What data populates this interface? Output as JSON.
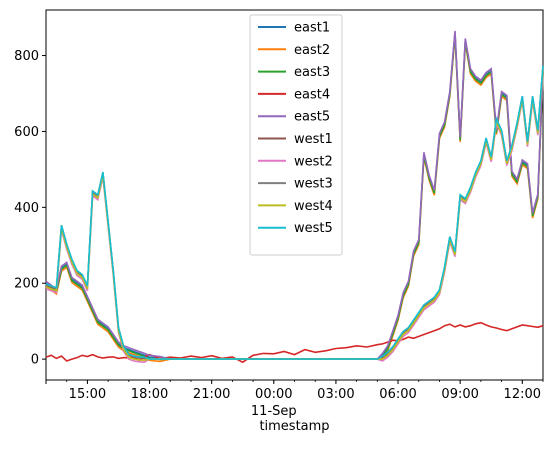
{
  "chart_data": {
    "type": "line",
    "xlabel": "timestamp",
    "ylabel": "",
    "title": "",
    "ylim": [
      -55,
      920
    ],
    "xlim": [
      13.0,
      37.0
    ],
    "grid": false,
    "legend_position": "top-center",
    "y_ticks": [
      {
        "value": 0,
        "label": "0"
      },
      {
        "value": 200,
        "label": "200"
      },
      {
        "value": 400,
        "label": "400"
      },
      {
        "value": 600,
        "label": "600"
      },
      {
        "value": 800,
        "label": "800"
      }
    ],
    "x_ticks": [
      {
        "value": 15,
        "label": "15:00"
      },
      {
        "value": 18,
        "label": "18:00"
      },
      {
        "value": 21,
        "label": "21:00"
      },
      {
        "value": 24,
        "label": "00:00"
      },
      {
        "value": 27,
        "label": "03:00"
      },
      {
        "value": 30,
        "label": "06:00"
      },
      {
        "value": 33,
        "label": "09:00"
      },
      {
        "value": 36,
        "label": "12:00"
      }
    ],
    "x_sublabel": {
      "value": 24,
      "label": "11-Sep"
    },
    "x": [
      13.0,
      13.25,
      13.5,
      13.75,
      14.0,
      14.25,
      14.5,
      14.75,
      15.0,
      15.25,
      15.5,
      15.75,
      16.0,
      16.25,
      16.5,
      16.75,
      17.0,
      17.25,
      17.5,
      17.75,
      18.0,
      18.5,
      19.0,
      19.5,
      20.0,
      20.5,
      21.0,
      21.5,
      22.0,
      22.5,
      23.0,
      23.5,
      24.0,
      24.5,
      25.0,
      25.5,
      26.0,
      26.5,
      27.0,
      27.5,
      28.0,
      28.5,
      29.0,
      29.25,
      29.5,
      29.75,
      30.0,
      30.25,
      30.5,
      30.75,
      31.0,
      31.25,
      31.5,
      31.75,
      32.0,
      32.25,
      32.5,
      32.75,
      33.0,
      33.25,
      33.5,
      33.75,
      34.0,
      34.25,
      34.5,
      34.75,
      35.0,
      35.25,
      35.5,
      35.75,
      36.0,
      36.25,
      36.5,
      36.75,
      37.0
    ],
    "series": [
      {
        "name": "east1",
        "color": "#1f77b4",
        "offset": 0
      },
      {
        "name": "east2",
        "color": "#ff7f0e",
        "offset": -8
      },
      {
        "name": "east3",
        "color": "#2ca02c",
        "offset": -3
      },
      {
        "name": "east4",
        "color": "#d62728",
        "values": [
          5,
          10,
          2,
          8,
          -5,
          0,
          4,
          10,
          7,
          12,
          6,
          3,
          5,
          6,
          2,
          4,
          3,
          5,
          -3,
          6,
          12,
          2,
          5,
          3,
          8,
          4,
          9,
          2,
          6,
          -8,
          10,
          15,
          14,
          20,
          12,
          25,
          18,
          22,
          28,
          30,
          35,
          32,
          38,
          40,
          45,
          50,
          48,
          52,
          58,
          55,
          60,
          65,
          70,
          75,
          80,
          88,
          92,
          85,
          90,
          85,
          88,
          93,
          96,
          90,
          85,
          82,
          78,
          75,
          80,
          85,
          90,
          88,
          86,
          84,
          88
        ]
      },
      {
        "name": "east5",
        "color": "#9467bd",
        "offset": 5
      },
      {
        "name": "west1",
        "color": "#8c564b",
        "offset": 0
      },
      {
        "name": "west2",
        "color": "#e377c2",
        "offset": -10
      },
      {
        "name": "west3",
        "color": "#7f7f7f",
        "offset": 2
      },
      {
        "name": "west4",
        "color": "#bcbd22",
        "offset": -5
      },
      {
        "name": "west5",
        "color": "#17becf",
        "offset": 3
      }
    ],
    "east_base": [
      200,
      190,
      180,
      240,
      250,
      210,
      200,
      190,
      160,
      130,
      100,
      90,
      80,
      60,
      40,
      30,
      25,
      20,
      15,
      10,
      5,
      2,
      0,
      0,
      0,
      0,
      0,
      0,
      0,
      0,
      0,
      0,
      0,
      0,
      0,
      0,
      0,
      0,
      0,
      0,
      0,
      0,
      0,
      10,
      30,
      70,
      110,
      170,
      200,
      280,
      310,
      540,
      480,
      440,
      590,
      620,
      700,
      860,
      580,
      840,
      760,
      740,
      730,
      750,
      760,
      600,
      700,
      690,
      490,
      470,
      520,
      510,
      380,
      430,
      760
    ],
    "west_base": [
      195,
      190,
      185,
      350,
      300,
      260,
      230,
      220,
      190,
      440,
      430,
      490,
      360,
      230,
      80,
      30,
      10,
      5,
      3,
      2,
      0,
      0,
      0,
      0,
      0,
      0,
      0,
      0,
      0,
      0,
      0,
      0,
      0,
      0,
      0,
      0,
      0,
      0,
      0,
      0,
      0,
      0,
      0,
      5,
      15,
      30,
      50,
      70,
      80,
      100,
      120,
      140,
      150,
      160,
      180,
      240,
      320,
      280,
      430,
      420,
      450,
      490,
      520,
      580,
      530,
      630,
      600,
      520,
      560,
      620,
      690,
      570,
      690,
      600,
      770
    ]
  }
}
